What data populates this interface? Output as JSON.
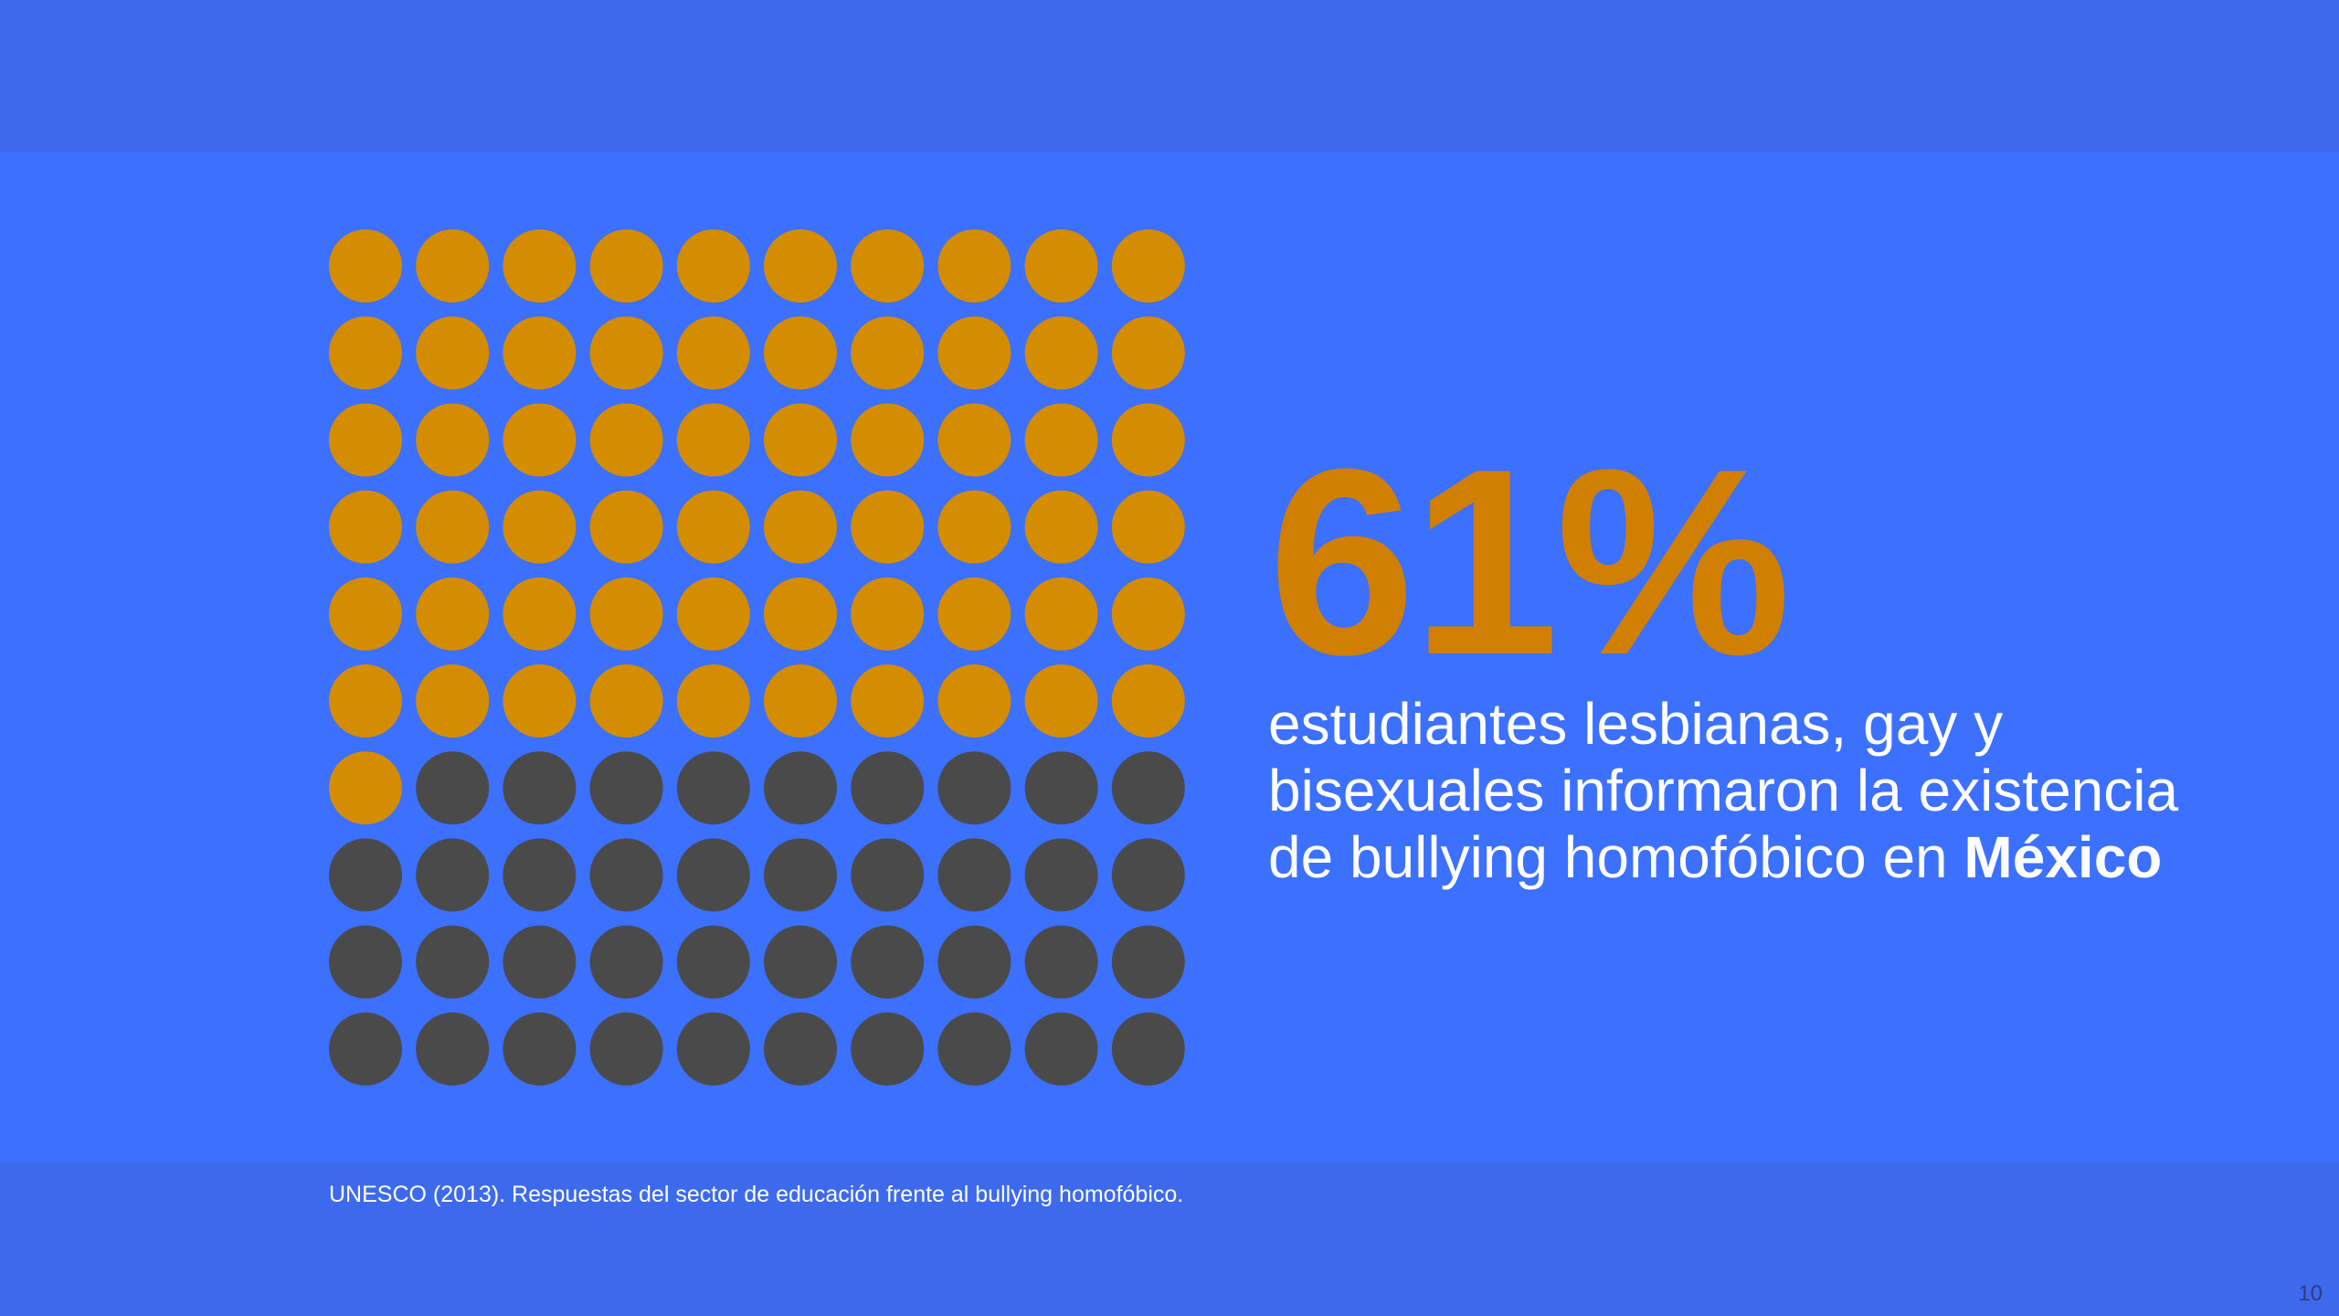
{
  "slide": {
    "big_stat": "61%",
    "description_lines": [
      "estudiantes lesbianas, gay y",
      "bisexuales informaron la existencia",
      "de bullying homofóbico en "
    ],
    "description_bold": "México",
    "source": "UNESCO (2013). Respuestas del sector de educación frente al bullying homofóbico.",
    "page_number": "10"
  },
  "colors": {
    "background": "#3C70FF",
    "band": "#3D6AED",
    "highlight": "#D48C00",
    "remainder": "#4A4A4A",
    "stat_text": "#D07F00",
    "text": "#FFFFFF"
  },
  "chart_data": {
    "type": "waffle",
    "total": 100,
    "rows": 10,
    "columns": 10,
    "values": [
      61,
      39
    ],
    "categories": [
      "",
      ""
    ],
    "fill_order": "row-major from top-left",
    "colors": [
      "#D48C00",
      "#4A4A4A"
    ],
    "title": "",
    "xlabel": "",
    "ylabel": "",
    "grid": false,
    "legend": "none"
  }
}
